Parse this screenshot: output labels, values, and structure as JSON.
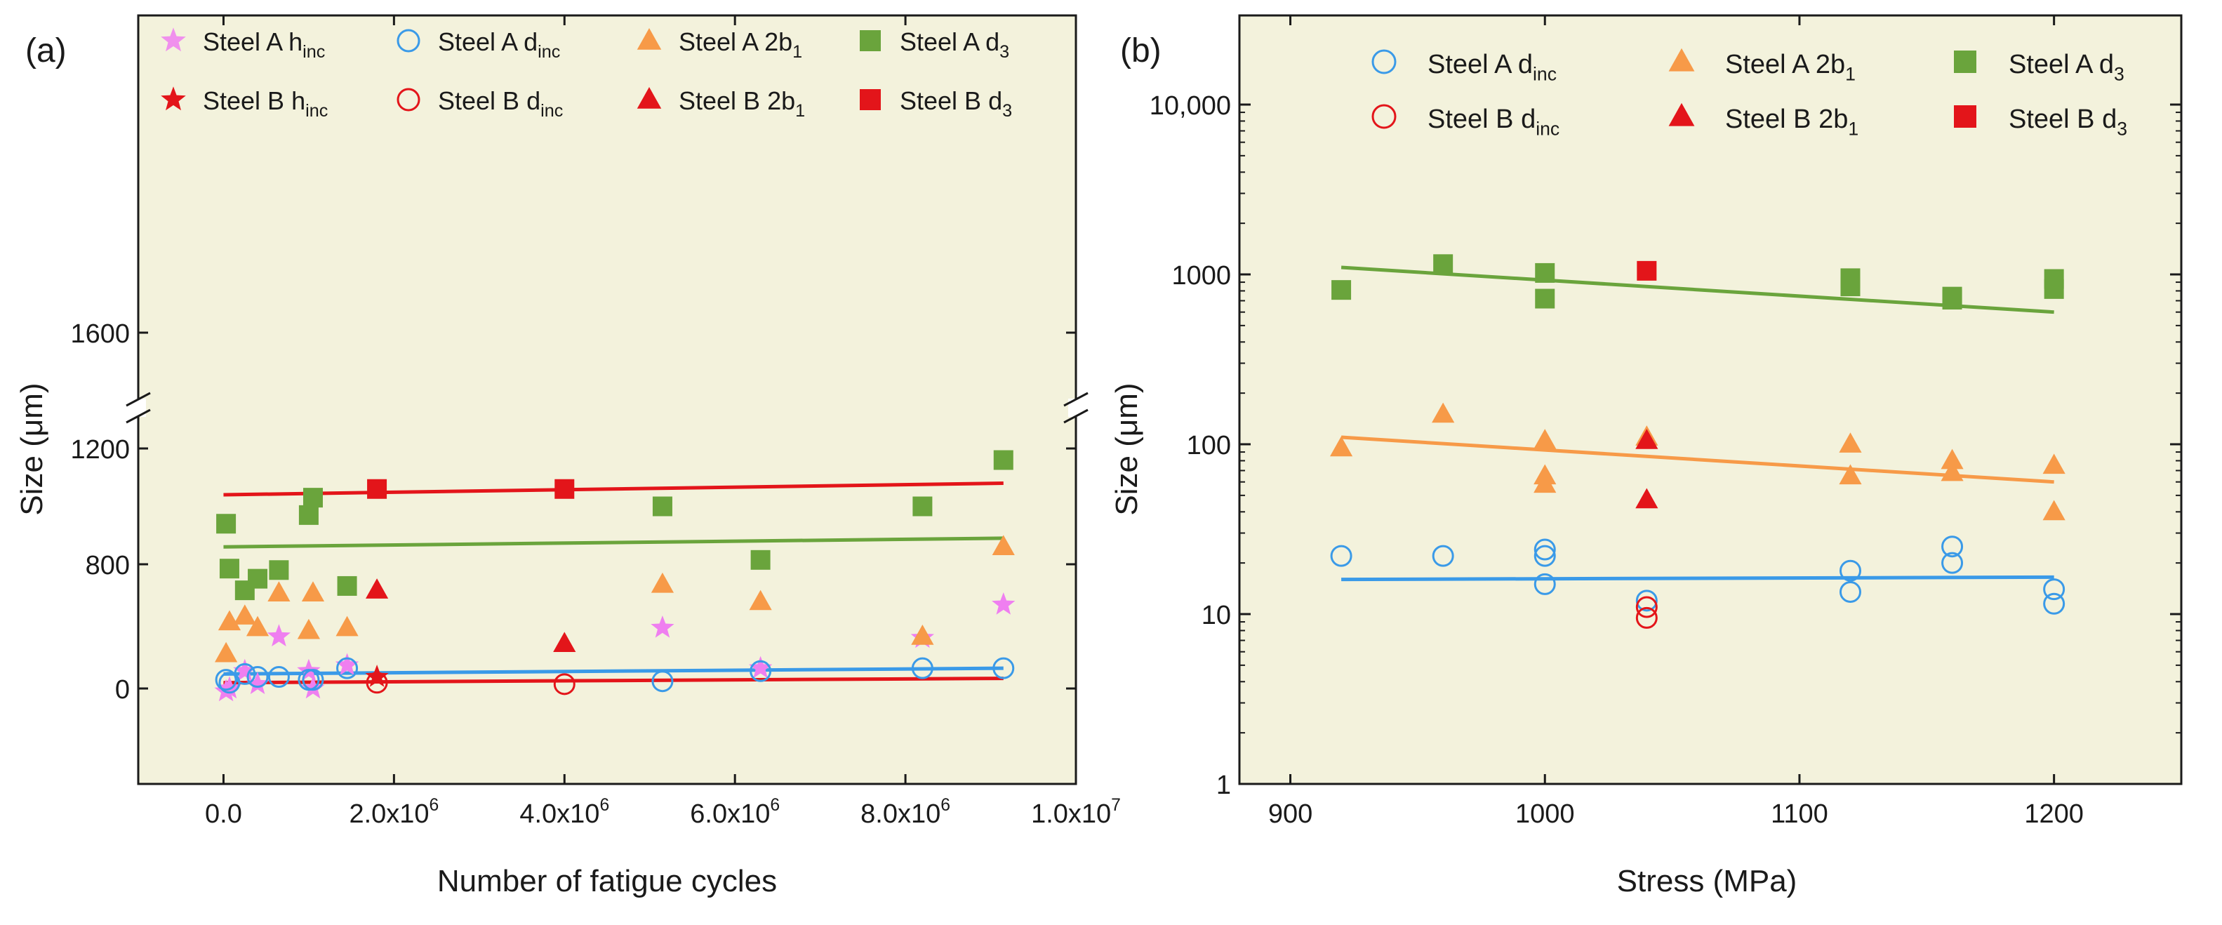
{
  "figure": {
    "colors": {
      "plot_bg": "#f3f2dc",
      "axis": "#1a1a1a",
      "steel_a_h": "#ef7ff0",
      "steel_b_h": "#e3151a",
      "steel_a_d": "#3a9ae8",
      "steel_b_d": "#e3151a",
      "steel_a_2b": "#f79a48",
      "steel_b_2b": "#e3151a",
      "steel_a_d3": "#6aa43c",
      "steel_b_d3": "#e3151a",
      "fit_red": "#e3151a",
      "fit_green": "#6aa43c",
      "fit_orange": "#f79a48",
      "fit_blue": "#3a9ae8"
    }
  },
  "chart_data": [
    {
      "panel_label": "(a)",
      "type": "scatter",
      "title": "",
      "xlabel": "Number of fatigue cycles",
      "ylabel": "Size (μm)",
      "xlim": [
        -1000000,
        10000000
      ],
      "x_ticks": [
        {
          "v": 0,
          "label": "0.0"
        },
        {
          "v": 2000000,
          "label": "2.0x10",
          "sup": "6"
        },
        {
          "v": 4000000,
          "label": "4.0x10",
          "sup": "6"
        },
        {
          "v": 6000000,
          "label": "6.0x10",
          "sup": "6"
        },
        {
          "v": 8000000,
          "label": "8.0x10",
          "sup": "6"
        },
        {
          "v": 10000000,
          "label": "1.0x10",
          "sup": "7"
        }
      ],
      "y_axis": {
        "broken": true,
        "lower_segment": {
          "range": [
            -300,
            500
          ],
          "ticks": [
            {
              "v": 0,
              "label": "0"
            }
          ]
        },
        "upper_segment": {
          "range": [
            600,
            1800
          ],
          "ticks": [
            {
              "v": 800,
              "label": "800"
            },
            {
              "v": 1200,
              "label": "1200"
            },
            {
              "v": 1600,
              "label": "1600"
            }
          ]
        }
      },
      "legend_position": "top",
      "legend": [
        {
          "name": "Steel A h",
          "sub": "inc",
          "marker": "star-open",
          "color_key": "steel_a_h"
        },
        {
          "name": "Steel A d",
          "sub": "inc",
          "marker": "circle-open",
          "color_key": "steel_a_d"
        },
        {
          "name": "Steel A 2b",
          "sub": "1",
          "marker": "triangle",
          "color_key": "steel_a_2b"
        },
        {
          "name": "Steel A d",
          "sub": "3",
          "marker": "square",
          "color_key": "steel_a_d3"
        },
        {
          "name": "Steel B h",
          "sub": "inc",
          "marker": "star",
          "color_key": "steel_b_h"
        },
        {
          "name": "Steel B d",
          "sub": "inc",
          "marker": "circle-open",
          "color_key": "steel_b_d"
        },
        {
          "name": "Steel B 2b",
          "sub": "1",
          "marker": "triangle",
          "color_key": "steel_b_2b"
        },
        {
          "name": "Steel B d",
          "sub": "3",
          "marker": "square",
          "color_key": "steel_b_d3"
        }
      ],
      "series": [
        {
          "name": "Steel A h_inc",
          "marker": "star",
          "color_key": "steel_a_h",
          "points": [
            [
              30000,
              -10
            ],
            [
              70000,
              0
            ],
            [
              250000,
              60
            ],
            [
              400000,
              15
            ],
            [
              650000,
              180
            ],
            [
              1000000,
              60
            ],
            [
              1050000,
              0
            ],
            [
              1450000,
              80
            ],
            [
              5150000,
              210
            ],
            [
              6300000,
              70
            ],
            [
              8200000,
              175
            ],
            [
              9150000,
              290
            ]
          ]
        },
        {
          "name": "Steel B h_inc",
          "marker": "star",
          "color_key": "steel_b_h",
          "points": [
            [
              1800000,
              40
            ]
          ]
        },
        {
          "name": "Steel A d_inc",
          "marker": "circle-open",
          "color_key": "steel_a_d",
          "points": [
            [
              30000,
              30
            ],
            [
              70000,
              20
            ],
            [
              250000,
              50
            ],
            [
              400000,
              40
            ],
            [
              650000,
              40
            ],
            [
              1000000,
              30
            ],
            [
              1050000,
              30
            ],
            [
              1450000,
              70
            ],
            [
              5150000,
              25
            ],
            [
              6300000,
              60
            ],
            [
              8200000,
              70
            ],
            [
              9150000,
              70
            ]
          ]
        },
        {
          "name": "Steel B d_inc",
          "marker": "circle-open",
          "color_key": "steel_b_d",
          "points": [
            [
              1800000,
              20
            ],
            [
              4000000,
              15
            ]
          ]
        },
        {
          "name": "Steel A 2b_1",
          "marker": "triangle",
          "color_key": "steel_a_2b",
          "points": [
            [
              30000,
              120
            ],
            [
              70000,
              230
            ],
            [
              250000,
              250
            ],
            [
              400000,
              210
            ],
            [
              650000,
              330
            ],
            [
              1000000,
              200
            ],
            [
              1050000,
              330
            ],
            [
              1450000,
              210
            ],
            [
              5150000,
              360
            ],
            [
              6300000,
              300
            ],
            [
              8200000,
              180
            ],
            [
              9150000,
              490
            ]
          ]
        },
        {
          "name": "Steel B 2b_1",
          "marker": "triangle",
          "color_key": "steel_b_2b",
          "points": [
            [
              1800000,
              340
            ],
            [
              4000000,
              155
            ]
          ]
        },
        {
          "name": "Steel A d_3",
          "marker": "square",
          "color_key": "steel_a_d3",
          "points": [
            [
              30000,
              940
            ],
            [
              70000,
              785
            ],
            [
              250000,
              710
            ],
            [
              400000,
              750
            ],
            [
              650000,
              780
            ],
            [
              1000000,
              970
            ],
            [
              1050000,
              1030
            ],
            [
              1450000,
              725
            ],
            [
              5150000,
              1000
            ],
            [
              6300000,
              815
            ],
            [
              8200000,
              1000
            ],
            [
              9150000,
              1160
            ]
          ]
        },
        {
          "name": "Steel B d_3",
          "marker": "square",
          "color_key": "steel_b_d3",
          "points": [
            [
              1800000,
              1060
            ],
            [
              4000000,
              1060
            ]
          ]
        }
      ],
      "fits": [
        {
          "name": "Steel B d_3 fit",
          "color_key": "fit_red",
          "from": [
            0,
            1040
          ],
          "to": [
            9150000,
            1080
          ]
        },
        {
          "name": "Steel A d_3 fit",
          "color_key": "fit_green",
          "from": [
            0,
            860
          ],
          "to": [
            9150000,
            890
          ]
        },
        {
          "name": "Steel A d_inc fit",
          "color_key": "fit_blue",
          "from": [
            0,
            50
          ],
          "to": [
            9150000,
            70
          ]
        },
        {
          "name": "Steel B d_inc fit",
          "color_key": "fit_red",
          "from": [
            0,
            20
          ],
          "to": [
            9150000,
            35
          ]
        }
      ]
    },
    {
      "panel_label": "(b)",
      "type": "scatter",
      "title": "",
      "xlabel": "Stress (MPa)",
      "ylabel": "Size (μm)",
      "xlim": [
        880,
        1250
      ],
      "x_ticks": [
        {
          "v": 900,
          "label": "900"
        },
        {
          "v": 1000,
          "label": "1000"
        },
        {
          "v": 1100,
          "label": "1100"
        },
        {
          "v": 1200,
          "label": "1200"
        }
      ],
      "y_scale": "log",
      "ylim": [
        1,
        30000
      ],
      "y_ticks": [
        {
          "v": 1,
          "label": "1"
        },
        {
          "v": 10,
          "label": "10"
        },
        {
          "v": 100,
          "label": "100"
        },
        {
          "v": 1000,
          "label": "1000"
        },
        {
          "v": 10000,
          "label": "10,000"
        }
      ],
      "legend_position": "top",
      "legend": [
        {
          "name": "Steel A d",
          "sub": "inc",
          "marker": "circle-open",
          "color_key": "steel_a_d"
        },
        {
          "name": "Steel A 2b",
          "sub": "1",
          "marker": "triangle",
          "color_key": "steel_a_2b"
        },
        {
          "name": "Steel A d",
          "sub": "3",
          "marker": "square",
          "color_key": "steel_a_d3"
        },
        {
          "name": "Steel B d",
          "sub": "inc",
          "marker": "circle-open",
          "color_key": "steel_b_d"
        },
        {
          "name": "Steel B 2b",
          "sub": "1",
          "marker": "triangle",
          "color_key": "steel_b_2b"
        },
        {
          "name": "Steel B d",
          "sub": "3",
          "marker": "square",
          "color_key": "steel_b_d3"
        }
      ],
      "series": [
        {
          "name": "Steel A d_inc",
          "marker": "circle-open",
          "color_key": "steel_a_d",
          "points": [
            [
              920,
              22
            ],
            [
              960,
              22
            ],
            [
              1000,
              24
            ],
            [
              1000,
              22
            ],
            [
              1000,
              15
            ],
            [
              1040,
              12
            ],
            [
              1120,
              18
            ],
            [
              1120,
              13.5
            ],
            [
              1160,
              25
            ],
            [
              1160,
              20
            ],
            [
              1200,
              14
            ],
            [
              1200,
              11.5
            ]
          ]
        },
        {
          "name": "Steel B d_inc",
          "marker": "circle-open",
          "color_key": "steel_b_d",
          "points": [
            [
              1040,
              11
            ],
            [
              1040,
              9.5
            ]
          ]
        },
        {
          "name": "Steel A 2b_1",
          "marker": "triangle",
          "color_key": "steel_a_2b",
          "points": [
            [
              920,
              95
            ],
            [
              960,
              150
            ],
            [
              1000,
              105
            ],
            [
              1000,
              65
            ],
            [
              1000,
              58
            ],
            [
              1040,
              110
            ],
            [
              1120,
              100
            ],
            [
              1120,
              65
            ],
            [
              1160,
              80
            ],
            [
              1160,
              68
            ],
            [
              1200,
              75
            ],
            [
              1200,
              40
            ]
          ]
        },
        {
          "name": "Steel B 2b_1",
          "marker": "triangle",
          "color_key": "steel_b_2b",
          "points": [
            [
              1040,
              105
            ],
            [
              1040,
              47
            ]
          ]
        },
        {
          "name": "Steel A d_3",
          "marker": "square",
          "color_key": "steel_a_d3",
          "points": [
            [
              920,
              810
            ],
            [
              960,
              1150
            ],
            [
              1000,
              1020
            ],
            [
              1000,
              720
            ],
            [
              1120,
              950
            ],
            [
              1120,
              850
            ],
            [
              1160,
              740
            ],
            [
              1160,
              710
            ],
            [
              1200,
              940
            ],
            [
              1200,
              820
            ]
          ]
        },
        {
          "name": "Steel B d_3",
          "marker": "square",
          "color_key": "steel_b_d3",
          "points": [
            [
              1040,
              1050
            ]
          ]
        }
      ],
      "fits": [
        {
          "name": "Steel A d_3 fit",
          "color_key": "fit_green",
          "from": [
            920,
            1100
          ],
          "to": [
            1200,
            600
          ]
        },
        {
          "name": "Steel A 2b_1 fit",
          "color_key": "fit_orange",
          "from": [
            920,
            110
          ],
          "to": [
            1200,
            60
          ]
        },
        {
          "name": "Steel A d_inc fit",
          "color_key": "fit_blue",
          "from": [
            920,
            16
          ],
          "to": [
            1200,
            16.5
          ]
        }
      ]
    }
  ]
}
